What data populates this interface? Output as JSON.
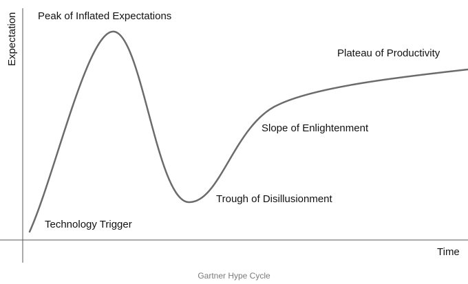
{
  "diagram": {
    "y_axis_label": "Expectation",
    "x_axis_label": "Time",
    "phases": [
      "Technology Trigger",
      "Peak of Inflated Expectations",
      "Trough of Disillusionment",
      "Slope of Enlightenment",
      "Plateau of Productivity"
    ],
    "colors": {
      "curve": "#6b6b6b",
      "axis": "#555555",
      "text": "#111111",
      "caption": "#7a7a7a"
    }
  },
  "caption": "Gartner Hype Cycle"
}
